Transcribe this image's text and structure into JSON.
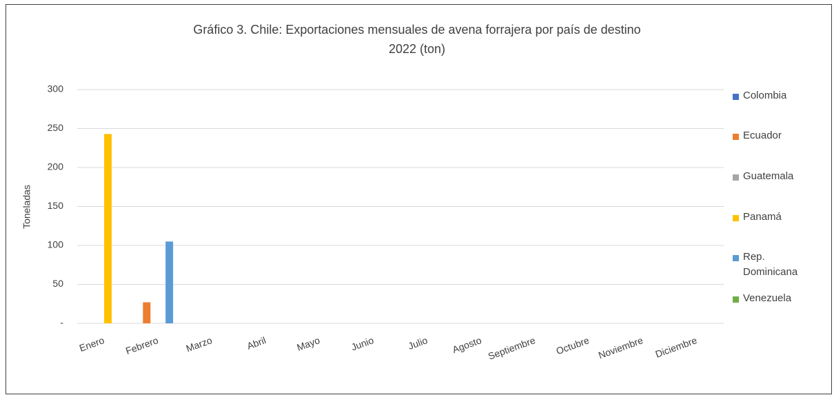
{
  "chart_data": {
    "type": "bar",
    "title": "Gráfico 3. Chile: Exportaciones mensuales de avena forrajera por país de destino",
    "subtitle": "2022 (ton)",
    "y_label": "Toneladas",
    "categories": [
      "Enero",
      "Febrero",
      "Marzo",
      "Abril",
      "Mayo",
      "Junio",
      "Julio",
      "Agosto",
      "Septiembre",
      "Octubre",
      "Noviembre",
      "Diciembre"
    ],
    "series": [
      {
        "name": "Colombia",
        "color": "#4472c4",
        "values": [
          0,
          0,
          0,
          0,
          0,
          0,
          0,
          0,
          0,
          0,
          0,
          0
        ]
      },
      {
        "name": "Ecuador",
        "color": "#ed7d31",
        "values": [
          0,
          27,
          0,
          0,
          0,
          0,
          0,
          0,
          0,
          0,
          0,
          0
        ]
      },
      {
        "name": "Guatemala",
        "color": "#a5a5a5",
        "values": [
          0,
          0,
          0,
          0,
          0,
          0,
          0,
          0,
          0,
          0,
          0,
          0
        ]
      },
      {
        "name": "Panamá",
        "color": "#ffc000",
        "values": [
          243,
          0,
          0,
          0,
          0,
          0,
          0,
          0,
          0,
          0,
          0,
          0
        ]
      },
      {
        "name": "Rep. Dominicana",
        "color": "#5b9bd5",
        "values": [
          0,
          105,
          0,
          0,
          0,
          0,
          0,
          0,
          0,
          0,
          0,
          0
        ]
      },
      {
        "name": "Venezuela",
        "color": "#70ad47",
        "values": [
          0,
          0,
          0,
          0,
          0,
          0,
          0,
          0,
          0,
          0,
          0,
          0
        ]
      }
    ],
    "ylim": [
      0,
      300
    ],
    "yticks": [
      {
        "value": 0,
        "label": "-"
      },
      50,
      100,
      150,
      200,
      250,
      300
    ],
    "grid": true,
    "legend": "right"
  }
}
